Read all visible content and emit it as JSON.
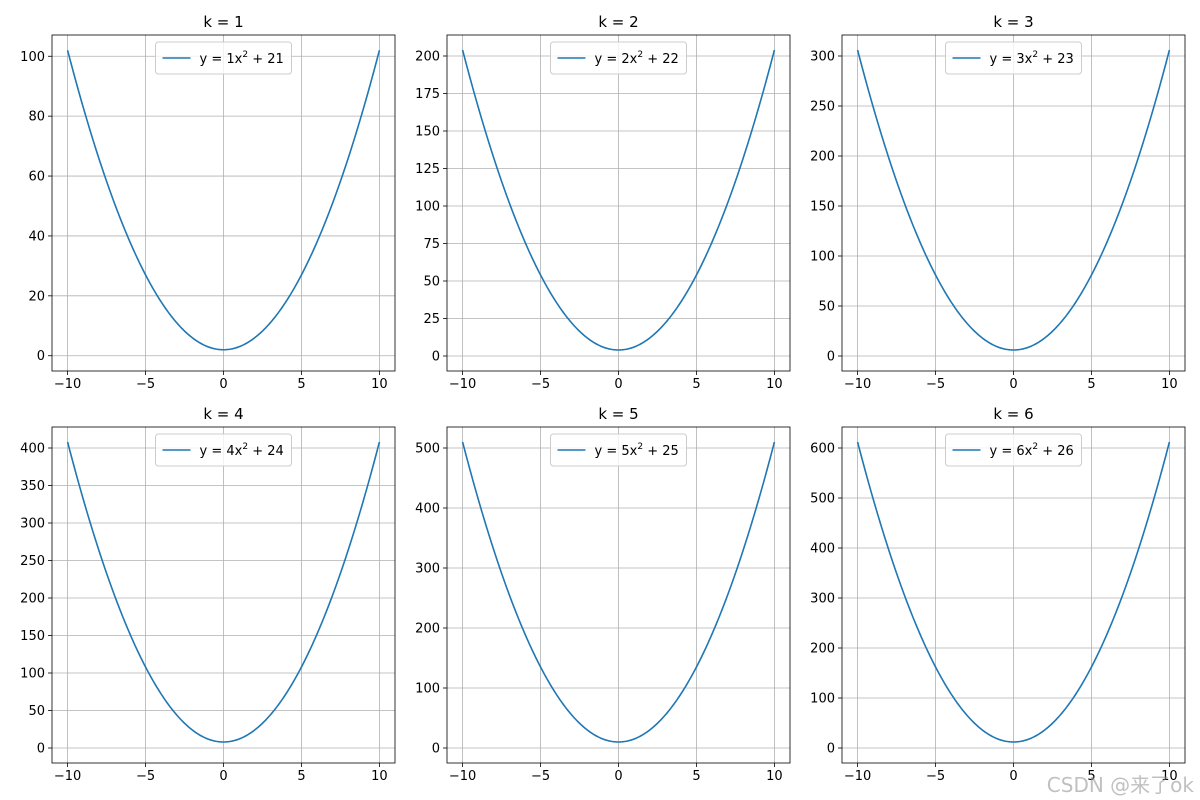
{
  "watermark": "CSDN @来了ok",
  "style": {
    "line_color": "#1f77b4",
    "grid_color": "#b0b0b0",
    "axes_color": "#000000",
    "legend_border": "#cccccc"
  },
  "chart_data": [
    {
      "type": "line",
      "title": "k = 1",
      "xlabel": "",
      "ylabel": "",
      "xlim": [
        -11,
        11
      ],
      "ylim": [
        -5.1,
        107.1
      ],
      "xticks": [
        -10,
        -5,
        0,
        5,
        10
      ],
      "yticks": [
        0,
        20,
        40,
        60,
        80,
        100
      ],
      "grid": true,
      "legend_position": "upper center",
      "series": [
        {
          "name_prefix": "y = 1x",
          "name_exp": "2",
          "name_suffix": " + 21",
          "a": 1,
          "b": 2,
          "x_range": [
            -10,
            10
          ]
        }
      ]
    },
    {
      "type": "line",
      "title": "k = 2",
      "xlabel": "",
      "ylabel": "",
      "xlim": [
        -11,
        11
      ],
      "ylim": [
        -10,
        214
      ],
      "xticks": [
        -10,
        -5,
        0,
        5,
        10
      ],
      "yticks": [
        0,
        25,
        50,
        75,
        100,
        125,
        150,
        175,
        200
      ],
      "grid": true,
      "legend_position": "upper center",
      "series": [
        {
          "name_prefix": "y = 2x",
          "name_exp": "2",
          "name_suffix": " + 22",
          "a": 2,
          "b": 4,
          "x_range": [
            -10,
            10
          ]
        }
      ]
    },
    {
      "type": "line",
      "title": "k = 3",
      "xlabel": "",
      "ylabel": "",
      "xlim": [
        -11,
        11
      ],
      "ylim": [
        -15,
        321
      ],
      "xticks": [
        -10,
        -5,
        0,
        5,
        10
      ],
      "yticks": [
        0,
        50,
        100,
        150,
        200,
        250,
        300
      ],
      "grid": true,
      "legend_position": "upper center",
      "series": [
        {
          "name_prefix": "y = 3x",
          "name_exp": "2",
          "name_suffix": " + 23",
          "a": 3,
          "b": 6,
          "x_range": [
            -10,
            10
          ]
        }
      ]
    },
    {
      "type": "line",
      "title": "k = 4",
      "xlabel": "",
      "ylabel": "",
      "xlim": [
        -11,
        11
      ],
      "ylim": [
        -20,
        428
      ],
      "xticks": [
        -10,
        -5,
        0,
        5,
        10
      ],
      "yticks": [
        0,
        50,
        100,
        150,
        200,
        250,
        300,
        350,
        400
      ],
      "grid": true,
      "legend_position": "upper center",
      "series": [
        {
          "name_prefix": "y = 4x",
          "name_exp": "2",
          "name_suffix": " + 24",
          "a": 4,
          "b": 8,
          "x_range": [
            -10,
            10
          ]
        }
      ]
    },
    {
      "type": "line",
      "title": "k = 5",
      "xlabel": "",
      "ylabel": "",
      "xlim": [
        -11,
        11
      ],
      "ylim": [
        -25,
        535
      ],
      "xticks": [
        -10,
        -5,
        0,
        5,
        10
      ],
      "yticks": [
        0,
        100,
        200,
        300,
        400,
        500
      ],
      "grid": true,
      "legend_position": "upper center",
      "series": [
        {
          "name_prefix": "y = 5x",
          "name_exp": "2",
          "name_suffix": " + 25",
          "a": 5,
          "b": 10,
          "x_range": [
            -10,
            10
          ]
        }
      ]
    },
    {
      "type": "line",
      "title": "k = 6",
      "xlabel": "",
      "ylabel": "",
      "xlim": [
        -11,
        11
      ],
      "ylim": [
        -30,
        642
      ],
      "xticks": [
        -10,
        -5,
        0,
        5,
        10
      ],
      "yticks": [
        0,
        100,
        200,
        300,
        400,
        500,
        600
      ],
      "grid": true,
      "legend_position": "upper center",
      "series": [
        {
          "name_prefix": "y = 6x",
          "name_exp": "2",
          "name_suffix": " + 26",
          "a": 6,
          "b": 12,
          "x_range": [
            -10,
            10
          ]
        }
      ]
    }
  ]
}
